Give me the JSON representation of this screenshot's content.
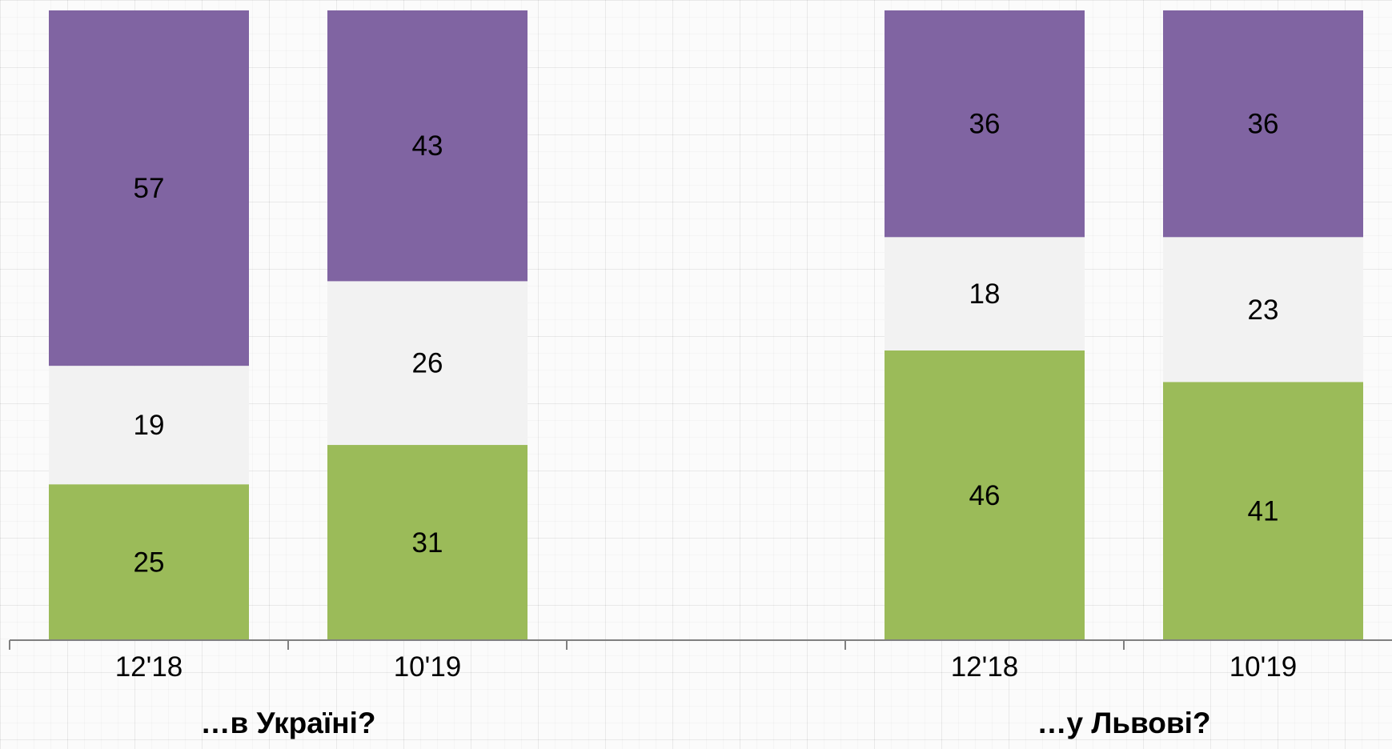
{
  "chart_data": {
    "type": "bar",
    "stacked": true,
    "normalized": true,
    "ylim": [
      0,
      100
    ],
    "groups": [
      {
        "label": "…в Україні?",
        "categories": [
          "12'18",
          "10'19"
        ],
        "series": [
          {
            "color": "#9bbb59",
            "values": [
              25,
              31
            ]
          },
          {
            "color": "#f2f2f2",
            "values": [
              19,
              26
            ]
          },
          {
            "color": "#8064a2",
            "values": [
              57,
              43
            ]
          }
        ]
      },
      {
        "label": "…у Львові?",
        "categories": [
          "12'18",
          "10'19"
        ],
        "series": [
          {
            "color": "#9bbb59",
            "values": [
              46,
              41
            ]
          },
          {
            "color": "#f2f2f2",
            "values": [
              18,
              23
            ]
          },
          {
            "color": "#8064a2",
            "values": [
              36,
              36
            ]
          }
        ]
      }
    ],
    "axis_color": "#808080",
    "grid": false,
    "legend": "none"
  }
}
